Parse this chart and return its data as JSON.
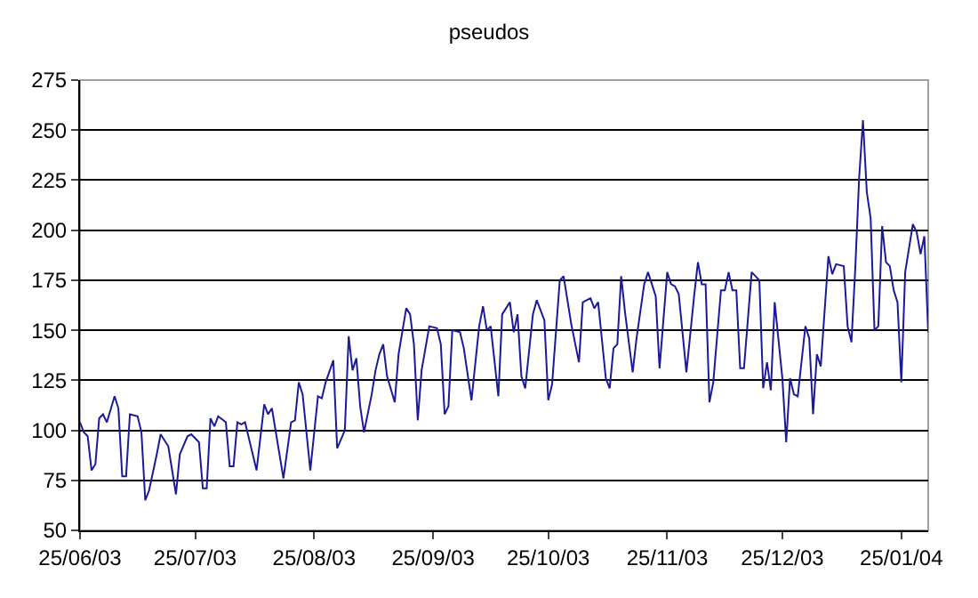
{
  "chart_data": {
    "type": "line",
    "title": "pseudos",
    "x": [
      "2003-06-25",
      "2003-06-26",
      "2003-06-27",
      "2003-06-28",
      "2003-06-29",
      "2003-06-30",
      "2003-07-01",
      "2003-07-02",
      "2003-07-04",
      "2003-07-05",
      "2003-07-06",
      "2003-07-07",
      "2003-07-08",
      "2003-07-10",
      "2003-07-11",
      "2003-07-12",
      "2003-07-13",
      "2003-07-15",
      "2003-07-16",
      "2003-07-18",
      "2003-07-20",
      "2003-07-21",
      "2003-07-23",
      "2003-07-24",
      "2003-07-26",
      "2003-07-27",
      "2003-07-28",
      "2003-07-29",
      "2003-07-30",
      "2003-07-31",
      "2003-08-02",
      "2003-08-03",
      "2003-08-04",
      "2003-08-05",
      "2003-08-06",
      "2003-08-07",
      "2003-08-10",
      "2003-08-12",
      "2003-08-13",
      "2003-08-14",
      "2003-08-17",
      "2003-08-19",
      "2003-08-20",
      "2003-08-21",
      "2003-08-22",
      "2003-08-24",
      "2003-08-26",
      "2003-08-27",
      "2003-08-28",
      "2003-08-30",
      "2003-08-31",
      "2003-09-02",
      "2003-09-03",
      "2003-09-04",
      "2003-09-05",
      "2003-09-06",
      "2003-09-07",
      "2003-09-09",
      "2003-09-10",
      "2003-09-11",
      "2003-09-12",
      "2003-09-13",
      "2003-09-15",
      "2003-09-16",
      "2003-09-18",
      "2003-09-19",
      "2003-09-20",
      "2003-09-21",
      "2003-09-22",
      "2003-09-24",
      "2003-09-26",
      "2003-09-27",
      "2003-09-28",
      "2003-09-29",
      "2003-09-30",
      "2003-10-02",
      "2003-10-03",
      "2003-10-05",
      "2003-10-07",
      "2003-10-08",
      "2003-10-09",
      "2003-10-10",
      "2003-10-12",
      "2003-10-13",
      "2003-10-15",
      "2003-10-16",
      "2003-10-17",
      "2003-10-18",
      "2003-10-19",
      "2003-10-21",
      "2003-10-22",
      "2003-10-24",
      "2003-10-25",
      "2003-10-26",
      "2003-10-28",
      "2003-10-29",
      "2003-10-31",
      "2003-11-02",
      "2003-11-03",
      "2003-11-05",
      "2003-11-06",
      "2003-11-07",
      "2003-11-09",
      "2003-11-10",
      "2003-11-11",
      "2003-11-12",
      "2003-11-13",
      "2003-11-14",
      "2003-11-16",
      "2003-11-17",
      "2003-11-19",
      "2003-11-20",
      "2003-11-22",
      "2003-11-23",
      "2003-11-25",
      "2003-11-26",
      "2003-11-27",
      "2003-11-28",
      "2003-11-30",
      "2003-12-02",
      "2003-12-03",
      "2003-12-04",
      "2003-12-05",
      "2003-12-06",
      "2003-12-07",
      "2003-12-09",
      "2003-12-10",
      "2003-12-11",
      "2003-12-12",
      "2003-12-13",
      "2003-12-14",
      "2003-12-15",
      "2003-12-17",
      "2003-12-18",
      "2003-12-19",
      "2003-12-20",
      "2003-12-21",
      "2003-12-22",
      "2003-12-23",
      "2003-12-25",
      "2003-12-26",
      "2003-12-27",
      "2003-12-28",
      "2003-12-29",
      "2003-12-31",
      "2004-01-01",
      "2004-01-02",
      "2004-01-03",
      "2004-01-04",
      "2004-01-06",
      "2004-01-07",
      "2004-01-08",
      "2004-01-10",
      "2004-01-11",
      "2004-01-12",
      "2004-01-13",
      "2004-01-14",
      "2004-01-15",
      "2004-01-16",
      "2004-01-17",
      "2004-01-18",
      "2004-01-19",
      "2004-01-20",
      "2004-01-21",
      "2004-01-22",
      "2004-01-23",
      "2004-01-24",
      "2004-01-25",
      "2004-01-26",
      "2004-01-28",
      "2004-01-29",
      "2004-01-30",
      "2004-01-31",
      "2004-02-01"
    ],
    "series": [
      {
        "color": "#1a1a9a",
        "values": [
          104,
          99,
          97,
          80,
          83,
          106,
          108,
          104,
          117,
          111,
          77,
          77,
          108,
          107,
          99,
          65,
          70,
          88,
          98,
          92,
          68,
          88,
          97,
          98,
          94,
          71,
          71,
          106,
          102,
          107,
          104,
          82,
          82,
          104,
          103,
          104,
          80,
          113,
          108,
          111,
          76,
          104,
          105,
          124,
          118,
          80,
          117,
          116,
          124,
          135,
          91,
          100,
          147,
          130,
          136,
          112,
          99,
          118,
          130,
          138,
          143,
          127,
          114,
          138,
          161,
          158,
          143,
          105,
          130,
          152,
          151,
          143,
          108,
          112,
          150,
          149,
          141,
          115,
          152,
          162,
          150,
          152,
          117,
          158,
          164,
          149,
          158,
          127,
          121,
          158,
          165,
          155,
          115,
          123,
          175,
          177,
          153,
          134,
          164,
          166,
          161,
          164,
          126,
          121,
          141,
          143,
          177,
          159,
          129,
          146,
          173,
          179,
          167,
          131,
          179,
          173,
          172,
          168,
          129,
          167,
          184,
          173,
          173,
          114,
          124,
          170,
          170,
          179,
          170,
          170,
          131,
          131,
          179,
          177,
          175,
          121,
          134,
          120,
          164,
          126,
          94,
          126,
          118,
          117,
          152,
          146,
          108,
          138,
          132,
          187,
          178,
          183,
          182,
          152,
          144,
          181,
          226,
          255,
          219,
          206,
          150,
          152,
          202,
          184,
          182,
          170,
          164,
          124,
          179,
          203,
          199,
          188,
          197,
          149
        ]
      }
    ],
    "xlim": [
      "2003-06-25",
      "2004-02-01"
    ],
    "xticks": [
      {
        "value": "2003-06-25",
        "label": "25/06/03"
      },
      {
        "value": "2003-07-25",
        "label": "25/07/03"
      },
      {
        "value": "2003-08-25",
        "label": "25/08/03"
      },
      {
        "value": "2003-09-25",
        "label": "25/09/03"
      },
      {
        "value": "2003-10-25",
        "label": "25/10/03"
      },
      {
        "value": "2003-11-25",
        "label": "25/11/03"
      },
      {
        "value": "2003-12-25",
        "label": "25/12/03"
      },
      {
        "value": "2004-01-25",
        "label": "25/01/04"
      }
    ],
    "ylim": [
      50,
      275
    ],
    "yticks": [
      50,
      75,
      100,
      125,
      150,
      175,
      200,
      225,
      250,
      275
    ],
    "grid": "y",
    "marker": "none",
    "line_style": "solid"
  }
}
